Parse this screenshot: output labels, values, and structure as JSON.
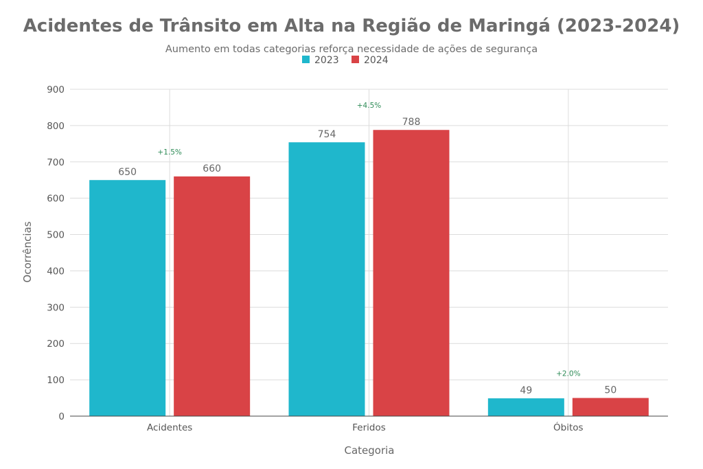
{
  "chart_data": {
    "type": "bar",
    "title": "Acidentes de Trânsito em Alta na Região de Maringá (2023-2024)",
    "subtitle": "Aumento em todas categorias reforça necessidade de ações de segurança",
    "xlabel": "Categoria",
    "ylabel": "Ocorrências",
    "ylim": [
      0,
      900
    ],
    "yticks": [
      "0",
      "100",
      "200",
      "300",
      "400",
      "500",
      "600",
      "700",
      "800",
      "900"
    ],
    "categories": [
      "Acidentes",
      "Feridos",
      "Óbitos"
    ],
    "series": [
      {
        "name": "2023",
        "color": "#1fb7cc",
        "values": [
          650,
          754,
          49
        ]
      },
      {
        "name": "2024",
        "color": "#d94346",
        "values": [
          660,
          788,
          50
        ]
      }
    ],
    "annotations": [
      "+1.5%",
      "+4.5%",
      "+2.0%"
    ],
    "grid": true,
    "legend_position": "top-center"
  }
}
